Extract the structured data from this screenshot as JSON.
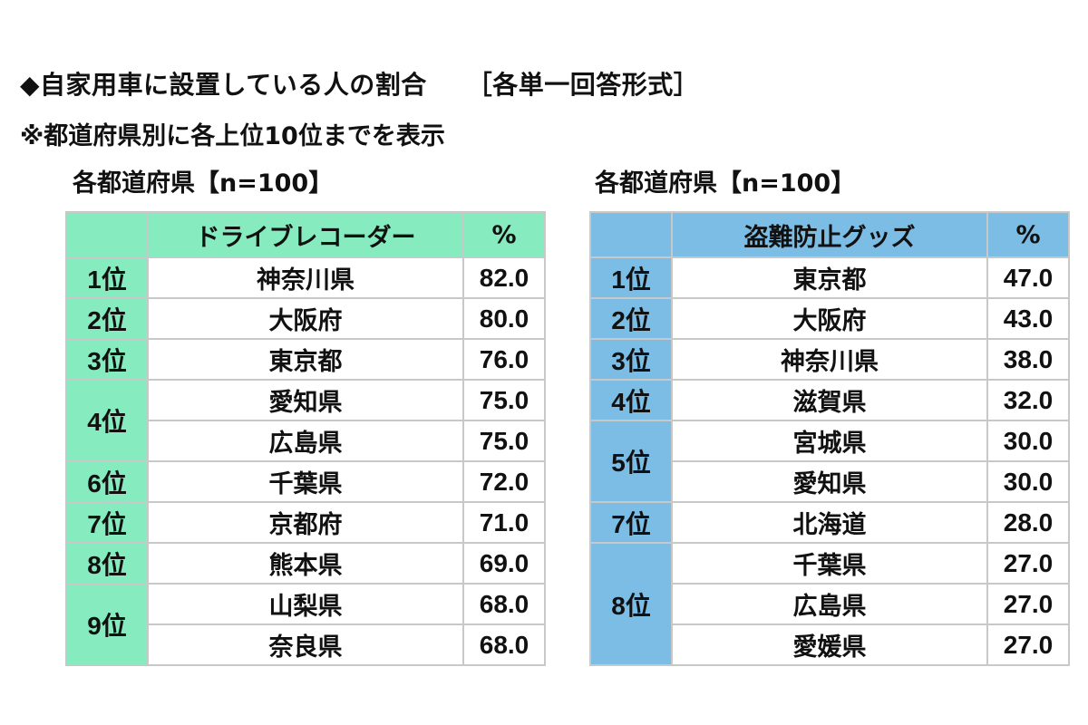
{
  "header": {
    "title": "◆自家用車に設置している人の割合",
    "format": "［各単一回答形式］",
    "note": "※都道府県別に各上位10位までを表示"
  },
  "chart_data": [
    {
      "type": "table",
      "subtitle": "各都道府県【n=100】",
      "columns": [
        "",
        "ドライブレコーダー",
        "%"
      ],
      "accent_color": "#86ecc0",
      "border_color": "#c8c8c8",
      "groups": [
        {
          "rank": "1位",
          "rows": [
            {
              "name": "神奈川県",
              "value": "82.0"
            }
          ]
        },
        {
          "rank": "2位",
          "rows": [
            {
              "name": "大阪府",
              "value": "80.0"
            }
          ]
        },
        {
          "rank": "3位",
          "rows": [
            {
              "name": "東京都",
              "value": "76.0"
            }
          ]
        },
        {
          "rank": "4位",
          "rows": [
            {
              "name": "愛知県",
              "value": "75.0"
            },
            {
              "name": "広島県",
              "value": "75.0"
            }
          ]
        },
        {
          "rank": "6位",
          "rows": [
            {
              "name": "千葉県",
              "value": "72.0"
            }
          ]
        },
        {
          "rank": "7位",
          "rows": [
            {
              "name": "京都府",
              "value": "71.0"
            }
          ]
        },
        {
          "rank": "8位",
          "rows": [
            {
              "name": "熊本県",
              "value": "69.0"
            }
          ]
        },
        {
          "rank": "9位",
          "rows": [
            {
              "name": "山梨県",
              "value": "68.0"
            },
            {
              "name": "奈良県",
              "value": "68.0"
            }
          ]
        }
      ]
    },
    {
      "type": "table",
      "subtitle": "各都道府県【n=100】",
      "columns": [
        "",
        "盗難防止グッズ",
        "%"
      ],
      "accent_color": "#7cbde6",
      "border_color": "#c8c8c8",
      "groups": [
        {
          "rank": "1位",
          "rows": [
            {
              "name": "東京都",
              "value": "47.0"
            }
          ]
        },
        {
          "rank": "2位",
          "rows": [
            {
              "name": "大阪府",
              "value": "43.0"
            }
          ]
        },
        {
          "rank": "3位",
          "rows": [
            {
              "name": "神奈川県",
              "value": "38.0"
            }
          ]
        },
        {
          "rank": "4位",
          "rows": [
            {
              "name": "滋賀県",
              "value": "32.0"
            }
          ]
        },
        {
          "rank": "5位",
          "rows": [
            {
              "name": "宮城県",
              "value": "30.0"
            },
            {
              "name": "愛知県",
              "value": "30.0"
            }
          ]
        },
        {
          "rank": "7位",
          "rows": [
            {
              "name": "北海道",
              "value": "28.0"
            }
          ]
        },
        {
          "rank": "8位",
          "rows": [
            {
              "name": "千葉県",
              "value": "27.0"
            },
            {
              "name": "広島県",
              "value": "27.0"
            },
            {
              "name": "愛媛県",
              "value": "27.0"
            }
          ]
        }
      ]
    }
  ]
}
